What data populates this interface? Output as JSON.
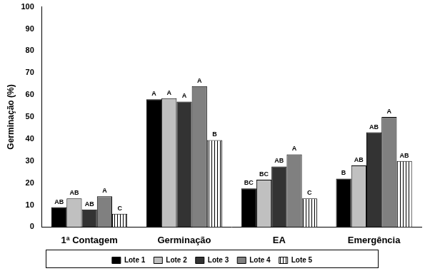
{
  "chart_data": {
    "type": "bar",
    "y_label": "Germinação (%)",
    "categories": [
      "1ª Contagem",
      "Germinação",
      "EA",
      "Emergência"
    ],
    "series": [
      {
        "name": "Lote 1",
        "color": "#000000",
        "values": [
          9,
          58,
          17.5,
          22
        ],
        "letters": [
          "AB",
          "A",
          "BC",
          "B"
        ]
      },
      {
        "name": "Lote 2",
        "color": "#c0c0c0",
        "values": [
          13,
          58.5,
          21.5,
          28
        ],
        "letters": [
          "AB",
          "A",
          "BC",
          "AB"
        ]
      },
      {
        "name": "Lote 3",
        "color": "#333333",
        "values": [
          8,
          57,
          27.5,
          43
        ],
        "letters": [
          "AB",
          "A",
          "AB",
          "AB"
        ]
      },
      {
        "name": "Lote 4",
        "color": "#808080",
        "values": [
          14,
          64,
          33,
          50
        ],
        "letters": [
          "A",
          "A",
          "A",
          "A"
        ]
      },
      {
        "name": "Lote 5",
        "color": "#ffffff",
        "values": [
          6,
          39.5,
          13,
          30
        ],
        "letters": [
          "C",
          "B",
          "C",
          "AB"
        ]
      }
    ],
    "ylim": [
      0,
      100
    ],
    "yticks": [
      0,
      10,
      20,
      30,
      40,
      50,
      60,
      70,
      80,
      90,
      100
    ],
    "grid": false,
    "legend": "bottom"
  }
}
